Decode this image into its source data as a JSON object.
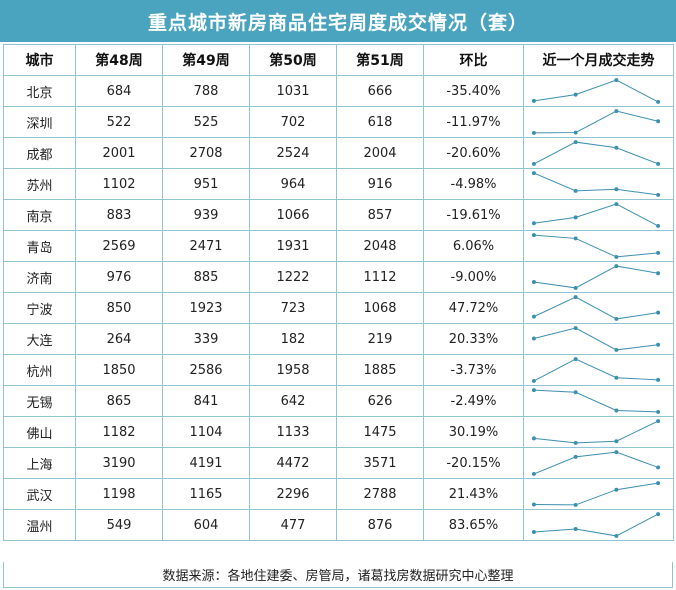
{
  "title": "重点城市新房商品住宅周度成交情况（套）",
  "headers": [
    "城市",
    "第48周",
    "第49周",
    "第50周",
    "第51周",
    "环比",
    "近一个月成交走势"
  ],
  "footer": "数据来源：各地住建委、房管局，诸葛找房数据研究中心整理",
  "colors": {
    "title_bg": "#4aa3bf",
    "border": "#8fc4d4",
    "sparkline": "#3d8fb0"
  },
  "chart_data": {
    "type": "table",
    "title": "重点城市新房商品住宅周度成交情况（套）",
    "columns": [
      "第48周",
      "第49周",
      "第50周",
      "第51周"
    ],
    "rows": [
      {
        "city": "北京",
        "values": [
          684,
          788,
          1031,
          666
        ],
        "change": "-35.40%"
      },
      {
        "city": "深圳",
        "values": [
          522,
          525,
          702,
          618
        ],
        "change": "-11.97%"
      },
      {
        "city": "成都",
        "values": [
          2001,
          2708,
          2524,
          2004
        ],
        "change": "-20.60%"
      },
      {
        "city": "苏州",
        "values": [
          1102,
          951,
          964,
          916
        ],
        "change": "-4.98%"
      },
      {
        "city": "南京",
        "values": [
          883,
          939,
          1066,
          857
        ],
        "change": "-19.61%"
      },
      {
        "city": "青岛",
        "values": [
          2569,
          2471,
          1931,
          2048
        ],
        "change": "6.06%"
      },
      {
        "city": "济南",
        "values": [
          976,
          885,
          1222,
          1112
        ],
        "change": "-9.00%"
      },
      {
        "city": "宁波",
        "values": [
          850,
          1923,
          723,
          1068
        ],
        "change": "47.72%"
      },
      {
        "city": "大连",
        "values": [
          264,
          339,
          182,
          219
        ],
        "change": "20.33%"
      },
      {
        "city": "杭州",
        "values": [
          1850,
          2586,
          1958,
          1885
        ],
        "change": "-3.73%"
      },
      {
        "city": "无锡",
        "values": [
          865,
          841,
          642,
          626
        ],
        "change": "-2.49%"
      },
      {
        "city": "佛山",
        "values": [
          1182,
          1104,
          1133,
          1475
        ],
        "change": "30.19%"
      },
      {
        "city": "上海",
        "values": [
          3190,
          4191,
          4472,
          3571
        ],
        "change": "-20.15%"
      },
      {
        "city": "武汉",
        "values": [
          1198,
          1165,
          2296,
          2788
        ],
        "change": "21.43%"
      },
      {
        "city": "温州",
        "values": [
          549,
          604,
          477,
          876
        ],
        "change": "83.65%"
      }
    ]
  }
}
